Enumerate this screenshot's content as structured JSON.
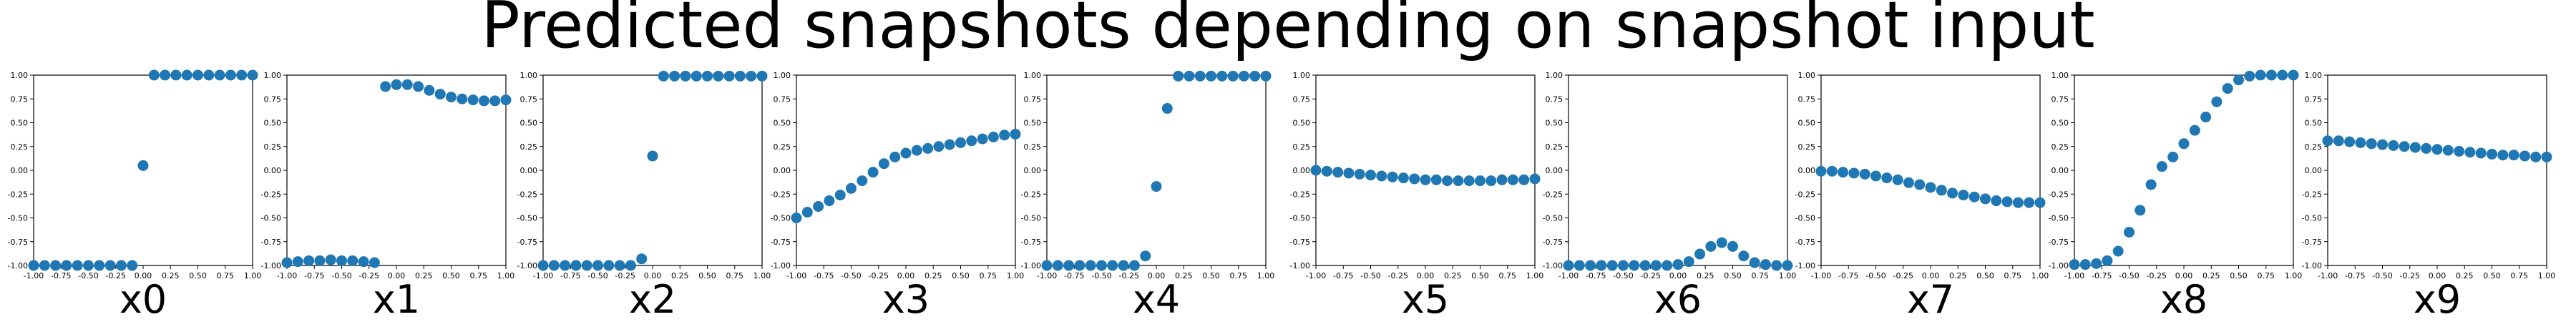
{
  "title": "Predicted snapshots depending on snapshot input",
  "style": {
    "marker_color": "#1f77b4",
    "axis_color": "#000000"
  },
  "chart_data": [
    {
      "type": "scatter",
      "xlabel": "x0",
      "xlim": [
        -1,
        1
      ],
      "ylim": [
        -1,
        1
      ],
      "x": [
        -1.0,
        -0.9,
        -0.8,
        -0.7,
        -0.6,
        -0.5,
        -0.4,
        -0.3,
        -0.2,
        -0.1,
        0.0,
        0.1,
        0.2,
        0.3,
        0.4,
        0.5,
        0.6,
        0.7,
        0.8,
        0.9,
        1.0
      ],
      "y": [
        -1.0,
        -1.0,
        -1.0,
        -1.0,
        -1.0,
        -1.0,
        -1.0,
        -1.0,
        -1.0,
        -1.0,
        0.05,
        1.0,
        1.0,
        1.0,
        1.0,
        1.0,
        1.0,
        1.0,
        1.0,
        1.0,
        1.0
      ]
    },
    {
      "type": "scatter",
      "xlabel": "x1",
      "xlim": [
        -1,
        1
      ],
      "ylim": [
        -1,
        1
      ],
      "x": [
        -1.0,
        -0.9,
        -0.8,
        -0.7,
        -0.6,
        -0.5,
        -0.4,
        -0.3,
        -0.2,
        -0.1,
        0.0,
        0.1,
        0.2,
        0.3,
        0.4,
        0.5,
        0.6,
        0.7,
        0.8,
        0.9,
        1.0
      ],
      "y": [
        -0.97,
        -0.96,
        -0.95,
        -0.95,
        -0.94,
        -0.95,
        -0.95,
        -0.96,
        -0.97,
        0.88,
        0.9,
        0.9,
        0.88,
        0.84,
        0.8,
        0.77,
        0.75,
        0.74,
        0.73,
        0.73,
        0.74
      ]
    },
    {
      "type": "scatter",
      "xlabel": "x2",
      "xlim": [
        -1,
        1
      ],
      "ylim": [
        -1,
        1
      ],
      "x": [
        -1.0,
        -0.9,
        -0.8,
        -0.7,
        -0.6,
        -0.5,
        -0.4,
        -0.3,
        -0.2,
        -0.1,
        0.0,
        0.1,
        0.2,
        0.3,
        0.4,
        0.5,
        0.6,
        0.7,
        0.8,
        0.9,
        1.0
      ],
      "y": [
        -1.0,
        -1.0,
        -1.0,
        -1.0,
        -1.0,
        -1.0,
        -1.0,
        -1.0,
        -1.0,
        -0.93,
        0.15,
        0.99,
        0.99,
        0.99,
        0.99,
        0.99,
        0.99,
        0.99,
        0.99,
        0.99,
        0.99
      ]
    },
    {
      "type": "scatter",
      "xlabel": "x3",
      "xlim": [
        -1,
        1
      ],
      "ylim": [
        -1,
        1
      ],
      "x": [
        -1.0,
        -0.9,
        -0.8,
        -0.7,
        -0.6,
        -0.5,
        -0.4,
        -0.3,
        -0.2,
        -0.1,
        0.0,
        0.1,
        0.2,
        0.3,
        0.4,
        0.5,
        0.6,
        0.7,
        0.8,
        0.9,
        1.0
      ],
      "y": [
        -0.5,
        -0.44,
        -0.38,
        -0.32,
        -0.26,
        -0.19,
        -0.11,
        -0.02,
        0.07,
        0.14,
        0.18,
        0.21,
        0.23,
        0.25,
        0.27,
        0.29,
        0.31,
        0.33,
        0.35,
        0.37,
        0.38
      ]
    },
    {
      "type": "scatter",
      "xlabel": "x4",
      "xlim": [
        -1,
        1
      ],
      "ylim": [
        -1,
        1
      ],
      "x": [
        -1.0,
        -0.9,
        -0.8,
        -0.7,
        -0.6,
        -0.5,
        -0.4,
        -0.3,
        -0.2,
        -0.1,
        0.0,
        0.1,
        0.2,
        0.3,
        0.4,
        0.5,
        0.6,
        0.7,
        0.8,
        0.9,
        1.0
      ],
      "y": [
        -1.0,
        -1.0,
        -1.0,
        -1.0,
        -1.0,
        -1.0,
        -1.0,
        -1.0,
        -1.0,
        -0.9,
        -0.17,
        0.65,
        0.99,
        0.99,
        0.99,
        0.99,
        0.99,
        0.99,
        0.99,
        0.99,
        0.99
      ]
    },
    {
      "type": "scatter",
      "xlabel": "x5",
      "xlim": [
        -1,
        1
      ],
      "ylim": [
        -1,
        1
      ],
      "x": [
        -1.0,
        -0.9,
        -0.8,
        -0.7,
        -0.6,
        -0.5,
        -0.4,
        -0.3,
        -0.2,
        -0.1,
        0.0,
        0.1,
        0.2,
        0.3,
        0.4,
        0.5,
        0.6,
        0.7,
        0.8,
        0.9,
        1.0
      ],
      "y": [
        0.0,
        -0.01,
        -0.02,
        -0.03,
        -0.04,
        -0.05,
        -0.06,
        -0.07,
        -0.08,
        -0.09,
        -0.1,
        -0.1,
        -0.11,
        -0.11,
        -0.11,
        -0.11,
        -0.11,
        -0.1,
        -0.1,
        -0.1,
        -0.09
      ]
    },
    {
      "type": "scatter",
      "xlabel": "x6",
      "xlim": [
        -1,
        1
      ],
      "ylim": [
        -1,
        1
      ],
      "x": [
        -1.0,
        -0.9,
        -0.8,
        -0.7,
        -0.6,
        -0.5,
        -0.4,
        -0.3,
        -0.2,
        -0.1,
        0.0,
        0.1,
        0.2,
        0.3,
        0.4,
        0.5,
        0.6,
        0.7,
        0.8,
        0.9,
        1.0
      ],
      "y": [
        -1.0,
        -1.0,
        -1.0,
        -1.0,
        -1.0,
        -1.0,
        -1.0,
        -1.0,
        -1.0,
        -1.0,
        -0.99,
        -0.96,
        -0.88,
        -0.8,
        -0.76,
        -0.8,
        -0.9,
        -0.97,
        -0.99,
        -1.0,
        -1.0
      ]
    },
    {
      "type": "scatter",
      "xlabel": "x7",
      "xlim": [
        -1,
        1
      ],
      "ylim": [
        -1,
        1
      ],
      "x": [
        -1.0,
        -0.9,
        -0.8,
        -0.7,
        -0.6,
        -0.5,
        -0.4,
        -0.3,
        -0.2,
        -0.1,
        0.0,
        0.1,
        0.2,
        0.3,
        0.4,
        0.5,
        0.6,
        0.7,
        0.8,
        0.9,
        1.0
      ],
      "y": [
        -0.01,
        -0.01,
        -0.02,
        -0.03,
        -0.04,
        -0.06,
        -0.08,
        -0.1,
        -0.13,
        -0.15,
        -0.18,
        -0.21,
        -0.24,
        -0.26,
        -0.28,
        -0.3,
        -0.32,
        -0.33,
        -0.34,
        -0.34,
        -0.34
      ]
    },
    {
      "type": "scatter",
      "xlabel": "x8",
      "xlim": [
        -1,
        1
      ],
      "ylim": [
        -1,
        1
      ],
      "x": [
        -1.0,
        -0.9,
        -0.8,
        -0.7,
        -0.6,
        -0.5,
        -0.4,
        -0.3,
        -0.2,
        -0.1,
        0.0,
        0.1,
        0.2,
        0.3,
        0.4,
        0.5,
        0.6,
        0.7,
        0.8,
        0.9,
        1.0
      ],
      "y": [
        -0.99,
        -0.99,
        -0.98,
        -0.95,
        -0.85,
        -0.65,
        -0.42,
        -0.15,
        0.04,
        0.14,
        0.28,
        0.42,
        0.56,
        0.72,
        0.86,
        0.95,
        0.99,
        1.0,
        1.0,
        1.0,
        1.0
      ]
    },
    {
      "type": "scatter",
      "xlabel": "x9",
      "xlim": [
        -1,
        1
      ],
      "ylim": [
        -1,
        1
      ],
      "x": [
        -1.0,
        -0.9,
        -0.8,
        -0.7,
        -0.6,
        -0.5,
        -0.4,
        -0.3,
        -0.2,
        -0.1,
        0.0,
        0.1,
        0.2,
        0.3,
        0.4,
        0.5,
        0.6,
        0.7,
        0.8,
        0.9,
        1.0
      ],
      "y": [
        0.31,
        0.31,
        0.3,
        0.29,
        0.28,
        0.27,
        0.26,
        0.25,
        0.24,
        0.23,
        0.22,
        0.21,
        0.2,
        0.19,
        0.18,
        0.17,
        0.16,
        0.16,
        0.15,
        0.14,
        0.14
      ]
    }
  ],
  "ticks": {
    "x": [
      "-1.00",
      "-0.75",
      "-0.50",
      "-0.25",
      "0.00",
      "0.25",
      "0.50",
      "0.75",
      "1.00"
    ],
    "y": [
      "-1.00",
      "-0.75",
      "-0.50",
      "-0.25",
      "0.00",
      "0.25",
      "0.50",
      "0.75",
      "1.00"
    ]
  }
}
